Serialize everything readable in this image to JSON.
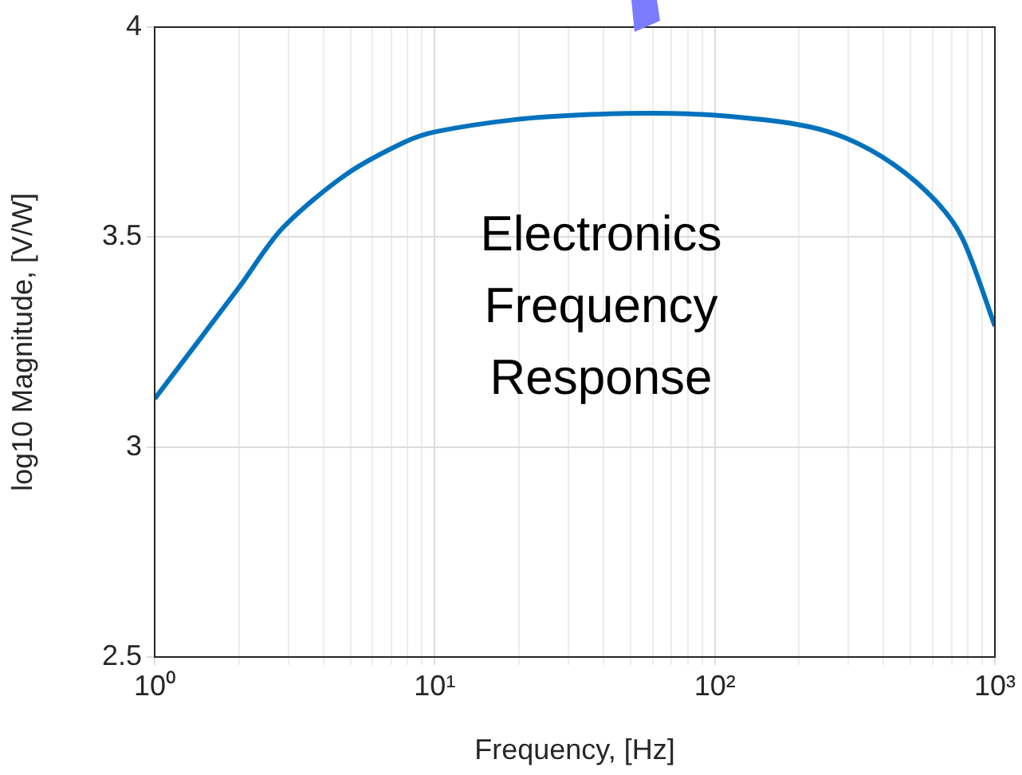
{
  "chart_data": {
    "type": "line",
    "xlabel": "Frequency, [Hz]",
    "ylabel": "log10 Magnitude, [V/W]",
    "annotations": [
      "Electronics Frequency Response"
    ],
    "log": "x",
    "grid": true,
    "marker": "none",
    "line_style": "solid",
    "xlim": [
      1,
      1000
    ],
    "ylim": [
      2.5,
      4
    ],
    "xticks": [
      {
        "value": 1,
        "label": "10⁰"
      },
      {
        "value": 2,
        "label": null
      },
      {
        "value": 3,
        "label": null
      },
      {
        "value": 4,
        "label": null
      },
      {
        "value": 5,
        "label": null
      },
      {
        "value": 6,
        "label": null
      },
      {
        "value": 7,
        "label": null
      },
      {
        "value": 8,
        "label": null
      },
      {
        "value": 9,
        "label": null
      },
      {
        "value": 10,
        "label": "10¹"
      },
      {
        "value": 20,
        "label": null
      },
      {
        "value": 30,
        "label": null
      },
      {
        "value": 40,
        "label": null
      },
      {
        "value": 50,
        "label": null
      },
      {
        "value": 60,
        "label": null
      },
      {
        "value": 70,
        "label": null
      },
      {
        "value": 80,
        "label": null
      },
      {
        "value": 90,
        "label": null
      },
      {
        "value": 100,
        "label": "10²"
      },
      {
        "value": 200,
        "label": null
      },
      {
        "value": 300,
        "label": null
      },
      {
        "value": 400,
        "label": null
      },
      {
        "value": 500,
        "label": null
      },
      {
        "value": 600,
        "label": null
      },
      {
        "value": 700,
        "label": null
      },
      {
        "value": 800,
        "label": null
      },
      {
        "value": 900,
        "label": null
      },
      {
        "value": 1000,
        "label": "10³"
      }
    ],
    "yticks": [
      2.5,
      3,
      3.5,
      4
    ],
    "x": [
      1,
      2,
      2.85,
      4.8,
      7.8,
      10.1,
      19.5,
      36,
      60.7,
      100,
      198,
      293,
      435,
      617,
      767,
      1000
    ],
    "series": [
      {
        "color": "#0072bd",
        "values": [
          3.115,
          3.38,
          3.52,
          3.648,
          3.726,
          3.751,
          3.78,
          3.792,
          3.795,
          3.79,
          3.768,
          3.736,
          3.673,
          3.585,
          3.496,
          3.288
        ]
      }
    ]
  }
}
